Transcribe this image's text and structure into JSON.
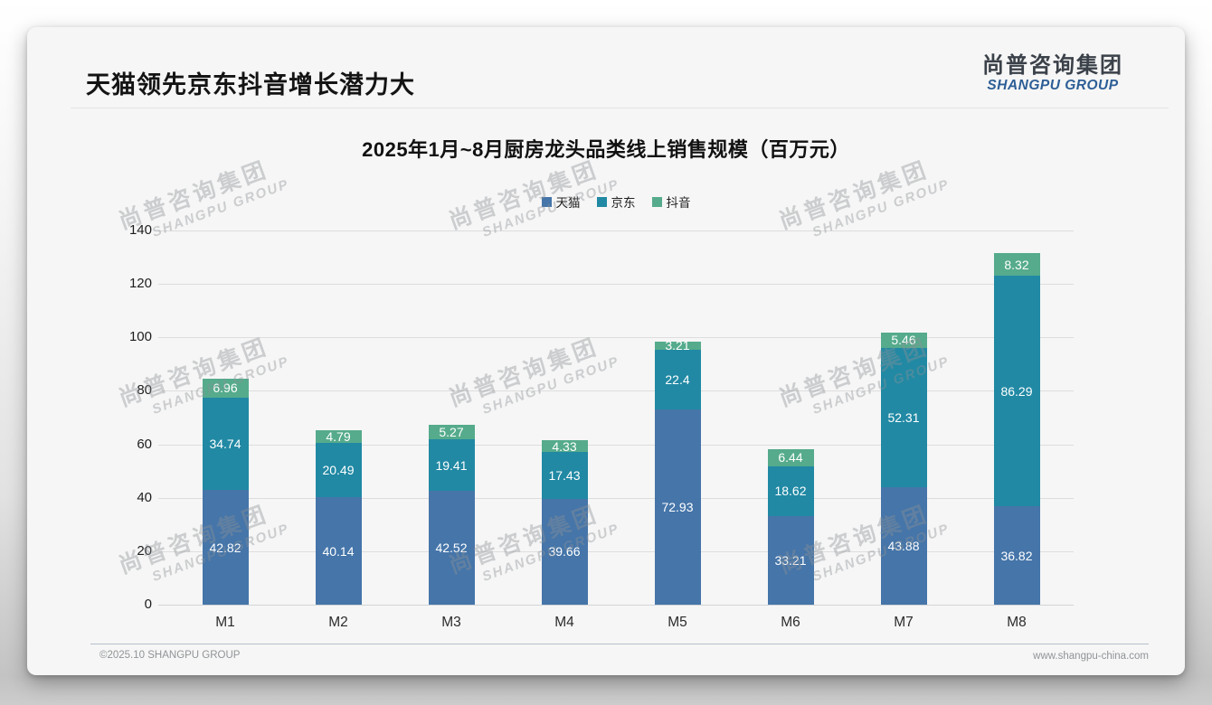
{
  "page": {
    "title": "天猫领先京东抖音增长潜力大",
    "logo": {
      "cn": "尚普咨询集团",
      "en": "SHANGPU GROUP"
    },
    "watermark": {
      "cn": "尚普咨询集团",
      "en": "SHANGPU GROUP"
    },
    "footer": {
      "left": "©2025.10 SHANGPU GROUP",
      "right": "www.shangpu-china.com"
    },
    "colors": {
      "logo_cn": "#3b4149",
      "logo_en": "#2d5e96"
    }
  },
  "chart_data": {
    "type": "bar",
    "stacked": true,
    "title": "2025年1月~8月厨房龙头品类线上销售规模（百万元）",
    "categories": [
      "M1",
      "M2",
      "M3",
      "M4",
      "M5",
      "M6",
      "M7",
      "M8"
    ],
    "series": [
      {
        "name": "天猫",
        "color": "#4575a9",
        "values": [
          42.82,
          40.14,
          42.52,
          39.66,
          72.93,
          33.21,
          43.88,
          36.82
        ]
      },
      {
        "name": "京东",
        "color": "#2189a4",
        "values": [
          34.74,
          20.49,
          19.41,
          17.43,
          22.4,
          18.62,
          52.31,
          86.29
        ]
      },
      {
        "name": "抖音",
        "color": "#55ab8c",
        "values": [
          6.96,
          4.79,
          5.27,
          4.33,
          3.21,
          6.44,
          5.46,
          8.32
        ]
      }
    ],
    "ylim": [
      0,
      140
    ],
    "ytick_step": 20,
    "grid": true,
    "legend_position": "top",
    "value_labels": true
  }
}
